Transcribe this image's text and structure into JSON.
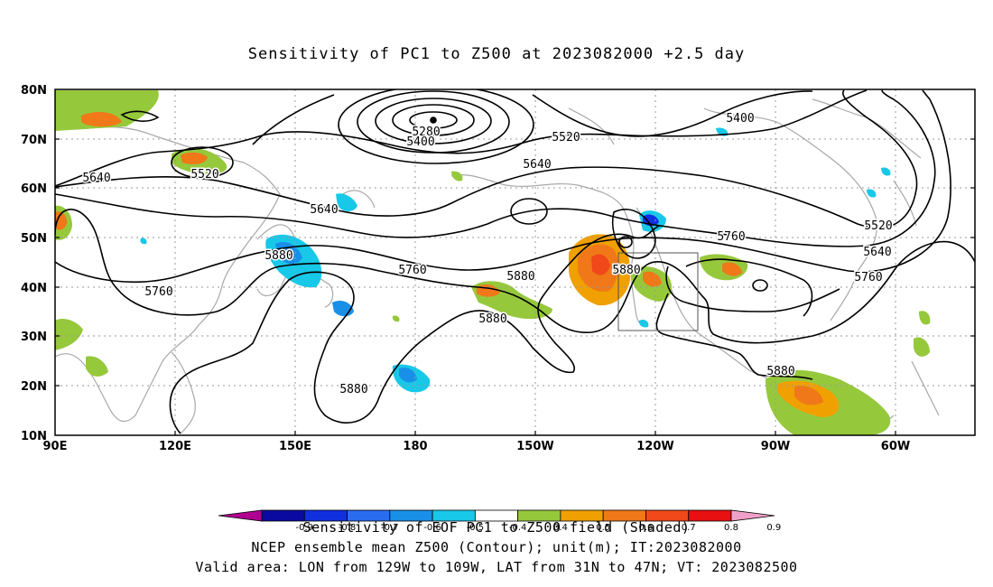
{
  "title": "Sensitivity of PC1 to Z500 at 2023082000 +2.5 day",
  "lat_labels": [
    "80N",
    "70N",
    "60N",
    "50N",
    "40N",
    "30N",
    "20N",
    "10N"
  ],
  "lon_labels": [
    "90E",
    "120E",
    "150E",
    "180",
    "150W",
    "120W",
    "90W",
    "60W"
  ],
  "contour_labels": [
    {
      "text": "5280"
    },
    {
      "text": "5400"
    },
    {
      "text": "5520"
    },
    {
      "text": "5640"
    },
    {
      "text": "5520"
    },
    {
      "text": "5640"
    },
    {
      "text": "5640"
    },
    {
      "text": "5400"
    },
    {
      "text": "5520"
    },
    {
      "text": "5640"
    },
    {
      "text": "5760"
    },
    {
      "text": "5760"
    },
    {
      "text": "5760"
    },
    {
      "text": "5880"
    },
    {
      "text": "5880"
    },
    {
      "text": "5880"
    },
    {
      "text": "5880"
    },
    {
      "text": "5880"
    },
    {
      "text": "5760"
    },
    {
      "text": "5880"
    }
  ],
  "colorbar": {
    "labels": [
      "-0.9",
      "-0.8",
      "-0.7",
      "-0.6",
      "-0.5",
      "-0.4",
      "0.4",
      "0.5",
      "0.6",
      "0.7",
      "0.8",
      "0.9"
    ],
    "colors": [
      "#b00090",
      "#0a0aa0",
      "#1030e0",
      "#2a6cf0",
      "#1890e8",
      "#18c8e8",
      "#ffffff",
      "#96c83c",
      "#f0a000",
      "#f07818",
      "#f04818",
      "#e81010",
      "#f0a0c8"
    ]
  },
  "footer": {
    "line1": "Sensitivity of EOF PC1 to Z500 field (Shaded)",
    "line2": "NCEP ensemble mean Z500 (Contour); unit(m); IT:2023082000",
    "line3": "Valid area: LON from 129W to 109W, LAT from 31N to 47N; VT: 2023082500"
  }
}
